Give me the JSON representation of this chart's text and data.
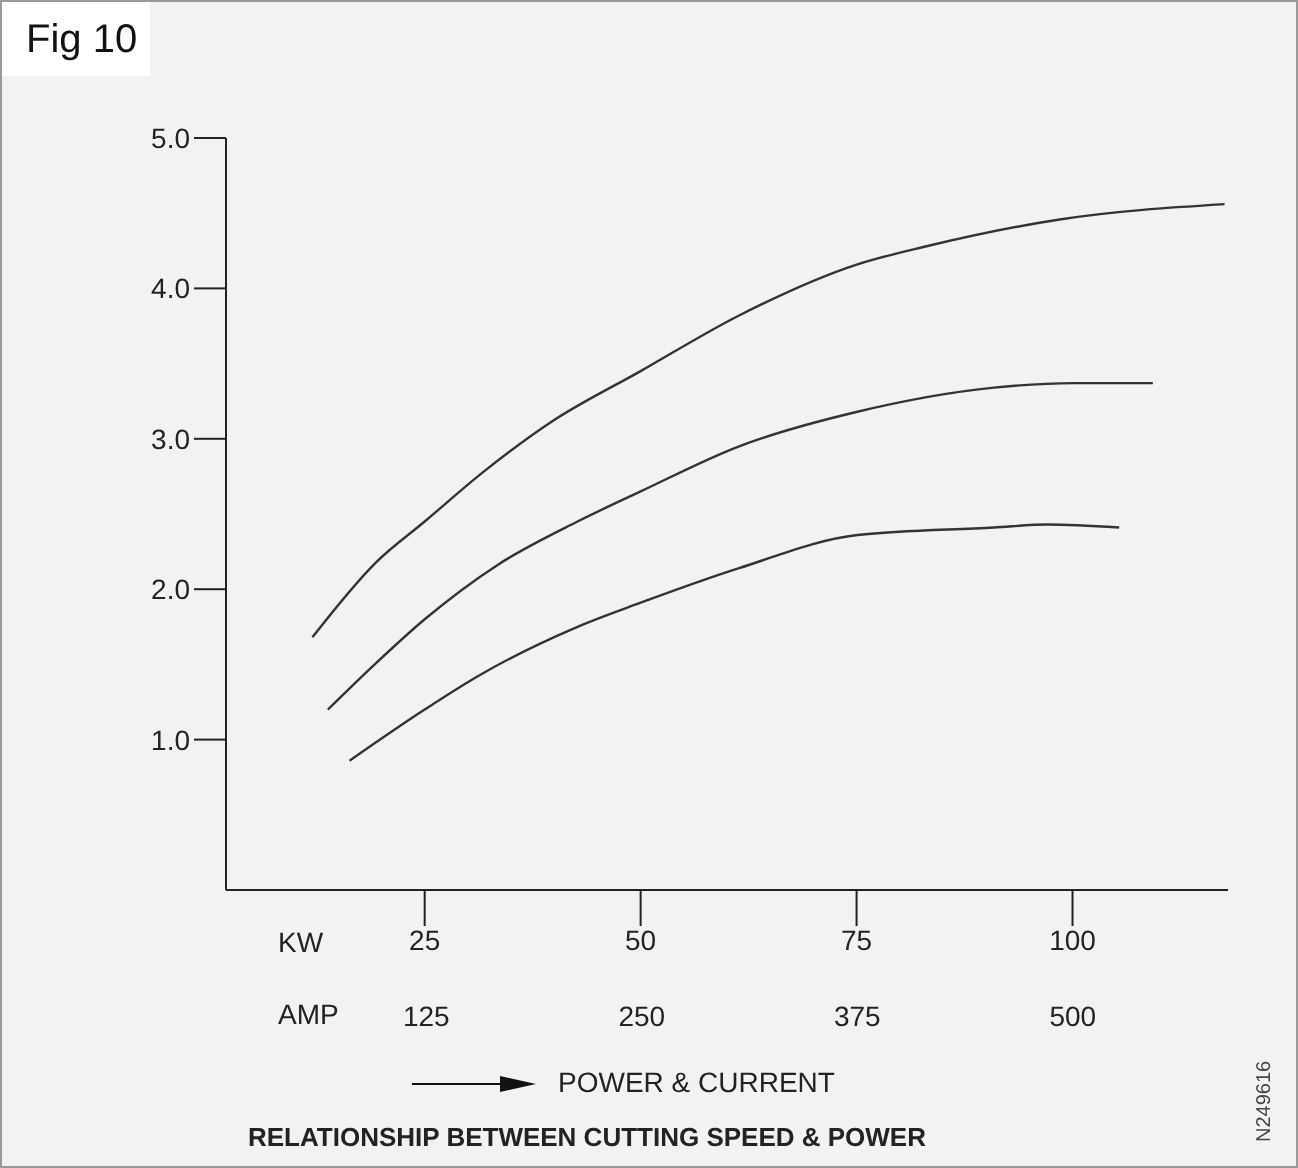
{
  "chart_data": {
    "type": "line",
    "title": "Fig 10",
    "subtitle": "RELATIONSHIP BETWEEN CUTTING SPEED & POWER",
    "xlabel": "KW",
    "x2label": "AMP",
    "annotations": [
      "POWER & CURRENT",
      "N249616"
    ],
    "series": [
      {
        "color": "#333333",
        "x": [
          12.0,
          19.4,
          25,
          31.8,
          39.6,
          50,
          61.4,
          75.1,
          83.1,
          98.7,
          117.6
        ],
        "values": [
          1.68,
          2.18,
          2.45,
          2.78,
          3.11,
          3.45,
          3.82,
          4.16,
          4.28,
          4.46,
          4.56
        ]
      },
      {
        "color": "#333333",
        "x": [
          13.8,
          19.4,
          25,
          33.4,
          42.7,
          50,
          61.4,
          75.1,
          90.9,
          100.2,
          109.3
        ],
        "values": [
          1.2,
          1.51,
          1.8,
          2.16,
          2.45,
          2.65,
          2.95,
          3.18,
          3.34,
          3.37,
          3.37
        ]
      },
      {
        "color": "#333333",
        "x": [
          16.3,
          25,
          31.1,
          42.7,
          50,
          61.4,
          75.1,
          90.9,
          97.1,
          105.4
        ],
        "values": [
          0.86,
          1.2,
          1.42,
          1.75,
          1.91,
          2.14,
          2.36,
          2.41,
          2.43,
          2.41
        ]
      }
    ],
    "xlim": [
      2,
      118
    ],
    "xticks": [
      25,
      50,
      75,
      100
    ],
    "x2lim": [
      10,
      590
    ],
    "x2ticks": [
      125,
      250,
      375,
      500
    ],
    "ylim": [
      0,
      5
    ],
    "yticks": [
      {
        "value": 1,
        "label": "1.0"
      },
      {
        "value": 2,
        "label": "2.0"
      },
      {
        "value": 3,
        "label": "3.0"
      },
      {
        "value": 4,
        "label": "4.0"
      },
      {
        "value": 5,
        "label": "5.0"
      }
    ],
    "grid": false,
    "legend": false,
    "marker": "none",
    "line_style": "solid"
  }
}
